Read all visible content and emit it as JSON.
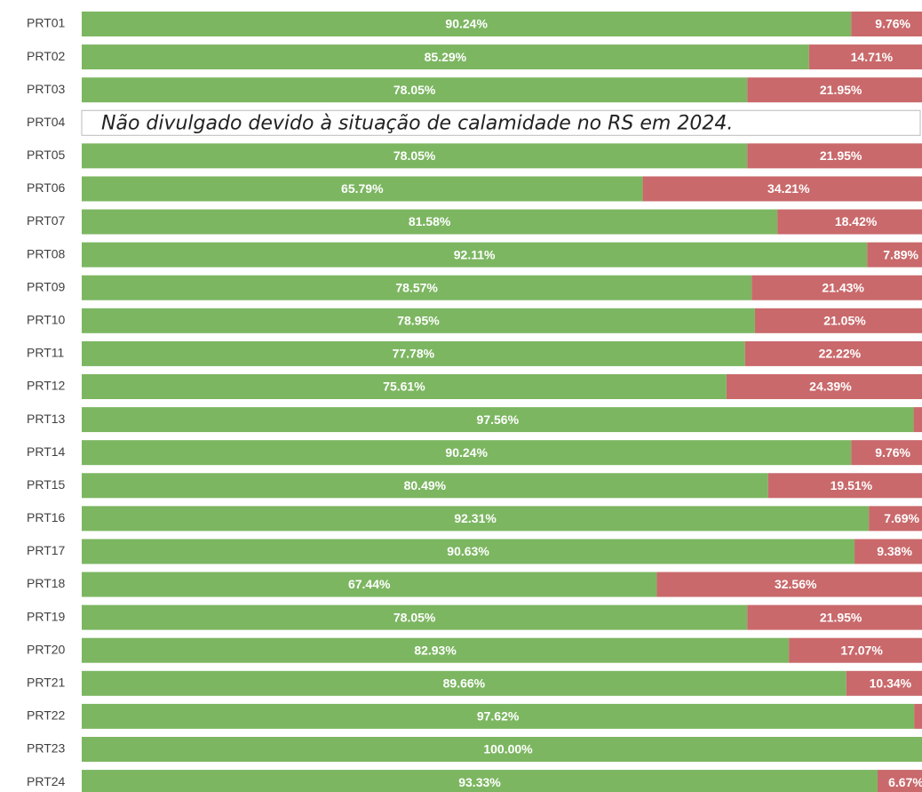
{
  "chart_data": {
    "type": "stacked-bar-100",
    "annotation": "Não divulgado devido à situação de calamidade no RS em 2024.",
    "categories": [
      "PRT01",
      "PRT02",
      "PRT03",
      "PRT04",
      "PRT05",
      "PRT06",
      "PRT07",
      "PRT08",
      "PRT09",
      "PRT10",
      "PRT11",
      "PRT12",
      "PRT13",
      "PRT14",
      "PRT15",
      "PRT16",
      "PRT17",
      "PRT18",
      "PRT19",
      "PRT20",
      "PRT21",
      "PRT22",
      "PRT23",
      "PRT24"
    ],
    "xlim": [
      0,
      100
    ],
    "series": [
      {
        "color": "#7cb661",
        "values": [
          90.24,
          85.29,
          78.05,
          null,
          78.05,
          65.79,
          81.58,
          92.11,
          78.57,
          78.95,
          77.78,
          75.61,
          97.56,
          90.24,
          80.49,
          92.31,
          90.63,
          67.44,
          78.05,
          82.93,
          89.66,
          97.62,
          100,
          93.33
        ],
        "value_labels": [
          "90.24%",
          "85.29%",
          "78.05%",
          null,
          "78.05%",
          "65.79%",
          "81.58%",
          "92.11%",
          "78.57%",
          "78.95%",
          "77.78%",
          "75.61%",
          "97.56%",
          "90.24%",
          "80.49%",
          "92.31%",
          "90.63%",
          "67.44%",
          "78.05%",
          "82.93%",
          "89.66%",
          "97.62%",
          "100.00%",
          "93.33%"
        ]
      },
      {
        "color": "#c9696b",
        "values": [
          9.76,
          14.71,
          21.95,
          null,
          21.95,
          34.21,
          18.42,
          7.89,
          21.43,
          21.05,
          22.22,
          24.39,
          2.44,
          9.76,
          19.51,
          7.69,
          9.38,
          32.56,
          21.95,
          17.07,
          10.34,
          2.38,
          0,
          6.67
        ],
        "value_labels": [
          "9.76%",
          "14.71%",
          "21.95%",
          null,
          "21.95%",
          "34.21%",
          "18.42%",
          "7.89%",
          "21.43%",
          "21.05%",
          "22.22%",
          "24.39%",
          null,
          "9.76%",
          "19.51%",
          "7.69%",
          "9.38%",
          "32.56%",
          "21.95%",
          "17.07%",
          "10.34%",
          null,
          null,
          "6.67%"
        ]
      }
    ]
  }
}
